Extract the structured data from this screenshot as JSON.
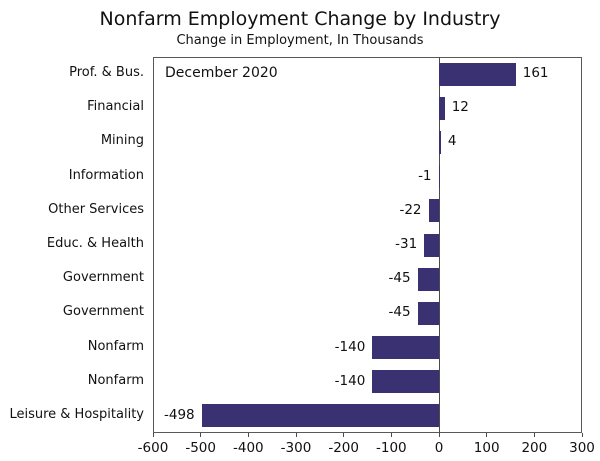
{
  "title": "Nonfarm Employment Change by Industry",
  "subtitle": "Change in Employment, In Thousands",
  "annotation": "December 2020",
  "colors": {
    "bar": "#3a3173",
    "frame": "#595959",
    "axis": "#4a4a4a",
    "text": "#111111"
  },
  "chart_data": {
    "type": "bar",
    "orientation": "horizontal",
    "title": "Nonfarm Employment Change by Industry",
    "subtitle": "Change in Employment, In Thousands",
    "annotation": "December 2020",
    "categories": [
      "Prof. & Bus.",
      "Financial",
      "Mining",
      "Information",
      "Other Services",
      "Educ. & Health",
      "Government",
      "Government",
      "Nonfarm",
      "Nonfarm",
      "Leisure & Hospitality"
    ],
    "values": [
      161,
      12,
      4,
      -1,
      -22,
      -31,
      -45,
      -45,
      -140,
      -140,
      -498
    ],
    "value_labels": [
      "161",
      "12",
      "4",
      "-1",
      "-22",
      "-31",
      "-45",
      "-45",
      "-140",
      "-140",
      "-498"
    ],
    "xlabel": "",
    "ylabel": "",
    "xlim": [
      -600,
      300
    ],
    "xticks": [
      -600,
      -500,
      -400,
      -300,
      -200,
      -100,
      0,
      100,
      200,
      300
    ],
    "xtick_labels": [
      "-600",
      "-500",
      "-400",
      "-300",
      "-200",
      "-100",
      "0",
      "100",
      "200",
      "300"
    ],
    "grid": false,
    "legend": false
  }
}
